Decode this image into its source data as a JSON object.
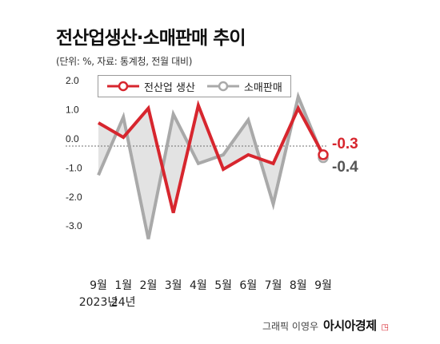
{
  "title": "전산업생산·소매판매 추이",
  "subtitle": "(단위: %, 자료: 통계청, 전월 대비)",
  "credit": {
    "prefix": "그래픽 이영우",
    "brand": "아시아경제"
  },
  "colors": {
    "industrial": "#d7262e",
    "retail": "#a9a9a9",
    "fill": "#e3e3e3"
  },
  "chart_data": {
    "type": "line",
    "categories": [
      "9월",
      "1월",
      "2월",
      "3월",
      "4월",
      "5월",
      "6월",
      "7월",
      "8월",
      "9월"
    ],
    "year_labels": [
      "2023년",
      "24년"
    ],
    "ylim": [
      -3.5,
      2.2
    ],
    "yticks": [
      "2.0",
      "1.0",
      "0.0",
      "-1.0",
      "-2.0",
      "-3.0"
    ],
    "ytick_values": [
      2.0,
      1.0,
      0.0,
      -1.0,
      -2.0,
      -3.0
    ],
    "grid": false,
    "legend": "top-left",
    "series": [
      {
        "name": "전산업 생산",
        "values": [
          0.8,
          0.3,
          1.3,
          -2.3,
          1.4,
          -0.8,
          -0.3,
          -0.6,
          1.3,
          -0.3
        ],
        "end_label": "-0.3"
      },
      {
        "name": "소매판매",
        "values": [
          -1.0,
          1.0,
          -3.2,
          1.1,
          -0.6,
          -0.3,
          0.9,
          -2.0,
          1.7,
          -0.4
        ],
        "end_label": "-0.4"
      }
    ]
  }
}
